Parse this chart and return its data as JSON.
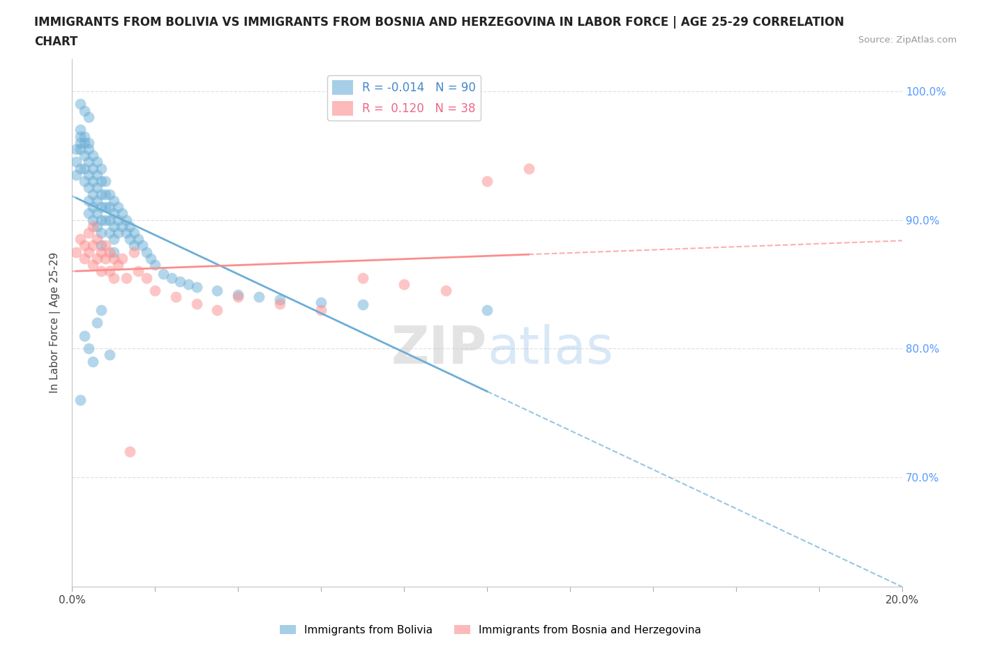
{
  "title_line1": "IMMIGRANTS FROM BOLIVIA VS IMMIGRANTS FROM BOSNIA AND HERZEGOVINA IN LABOR FORCE | AGE 25-29 CORRELATION",
  "title_line2": "CHART",
  "source_text": "Source: ZipAtlas.com",
  "ylabel": "In Labor Force | Age 25-29",
  "xlim": [
    0.0,
    0.2
  ],
  "ylim": [
    0.615,
    1.025
  ],
  "yticks": [
    0.7,
    0.8,
    0.9,
    1.0
  ],
  "ytick_labels": [
    "70.0%",
    "80.0%",
    "90.0%",
    "100.0%"
  ],
  "xticks": [
    0.0,
    0.02,
    0.04,
    0.06,
    0.08,
    0.1,
    0.12,
    0.14,
    0.16,
    0.18,
    0.2
  ],
  "xtick_labels": [
    "0.0%",
    "",
    "",
    "",
    "",
    "",
    "",
    "",
    "",
    "",
    "20.0%"
  ],
  "bolivia_color": "#6baed6",
  "bosnia_color": "#fc8d8d",
  "bolivia_R": -0.014,
  "bolivia_N": 90,
  "bosnia_R": 0.12,
  "bosnia_N": 38,
  "legend_label_bolivia": "Immigrants from Bolivia",
  "legend_label_bosnia": "Immigrants from Bosnia and Herzegovina",
  "watermark_zip": "ZIP",
  "watermark_atlas": "atlas",
  "background_color": "#ffffff",
  "grid_color": "#e0e0e0",
  "right_axis_color": "#5599ff",
  "bolivia_x": [
    0.001,
    0.001,
    0.001,
    0.002,
    0.002,
    0.002,
    0.002,
    0.002,
    0.003,
    0.003,
    0.003,
    0.003,
    0.003,
    0.004,
    0.004,
    0.004,
    0.004,
    0.004,
    0.004,
    0.004,
    0.005,
    0.005,
    0.005,
    0.005,
    0.005,
    0.005,
    0.006,
    0.006,
    0.006,
    0.006,
    0.006,
    0.006,
    0.007,
    0.007,
    0.007,
    0.007,
    0.007,
    0.007,
    0.007,
    0.008,
    0.008,
    0.008,
    0.008,
    0.009,
    0.009,
    0.009,
    0.009,
    0.01,
    0.01,
    0.01,
    0.01,
    0.01,
    0.011,
    0.011,
    0.011,
    0.012,
    0.012,
    0.013,
    0.013,
    0.014,
    0.014,
    0.015,
    0.015,
    0.016,
    0.017,
    0.018,
    0.019,
    0.02,
    0.022,
    0.024,
    0.026,
    0.028,
    0.03,
    0.035,
    0.04,
    0.045,
    0.05,
    0.06,
    0.07,
    0.1,
    0.002,
    0.003,
    0.004,
    0.005,
    0.006,
    0.007,
    0.002,
    0.003,
    0.004,
    0.009
  ],
  "bolivia_y": [
    0.955,
    0.945,
    0.935,
    0.97,
    0.965,
    0.96,
    0.955,
    0.94,
    0.965,
    0.96,
    0.95,
    0.94,
    0.93,
    0.96,
    0.955,
    0.945,
    0.935,
    0.925,
    0.915,
    0.905,
    0.95,
    0.94,
    0.93,
    0.92,
    0.91,
    0.9,
    0.945,
    0.935,
    0.925,
    0.915,
    0.905,
    0.895,
    0.94,
    0.93,
    0.92,
    0.91,
    0.9,
    0.89,
    0.88,
    0.93,
    0.92,
    0.91,
    0.9,
    0.92,
    0.91,
    0.9,
    0.89,
    0.915,
    0.905,
    0.895,
    0.885,
    0.875,
    0.91,
    0.9,
    0.89,
    0.905,
    0.895,
    0.9,
    0.89,
    0.895,
    0.885,
    0.89,
    0.88,
    0.885,
    0.88,
    0.875,
    0.87,
    0.865,
    0.858,
    0.855,
    0.852,
    0.85,
    0.848,
    0.845,
    0.842,
    0.84,
    0.838,
    0.836,
    0.834,
    0.83,
    0.76,
    0.81,
    0.8,
    0.79,
    0.82,
    0.83,
    0.99,
    0.985,
    0.98,
    0.795
  ],
  "bosnia_x": [
    0.001,
    0.002,
    0.003,
    0.003,
    0.004,
    0.004,
    0.005,
    0.005,
    0.005,
    0.006,
    0.006,
    0.007,
    0.007,
    0.008,
    0.008,
    0.009,
    0.009,
    0.01,
    0.01,
    0.011,
    0.012,
    0.013,
    0.014,
    0.015,
    0.016,
    0.018,
    0.02,
    0.025,
    0.03,
    0.035,
    0.04,
    0.05,
    0.06,
    0.07,
    0.08,
    0.09,
    0.1,
    0.11
  ],
  "bosnia_y": [
    0.875,
    0.885,
    0.87,
    0.88,
    0.875,
    0.89,
    0.865,
    0.88,
    0.895,
    0.87,
    0.885,
    0.86,
    0.875,
    0.87,
    0.88,
    0.86,
    0.875,
    0.855,
    0.87,
    0.865,
    0.87,
    0.855,
    0.72,
    0.875,
    0.86,
    0.855,
    0.845,
    0.84,
    0.835,
    0.83,
    0.84,
    0.835,
    0.83,
    0.855,
    0.85,
    0.845,
    0.93,
    0.94
  ]
}
